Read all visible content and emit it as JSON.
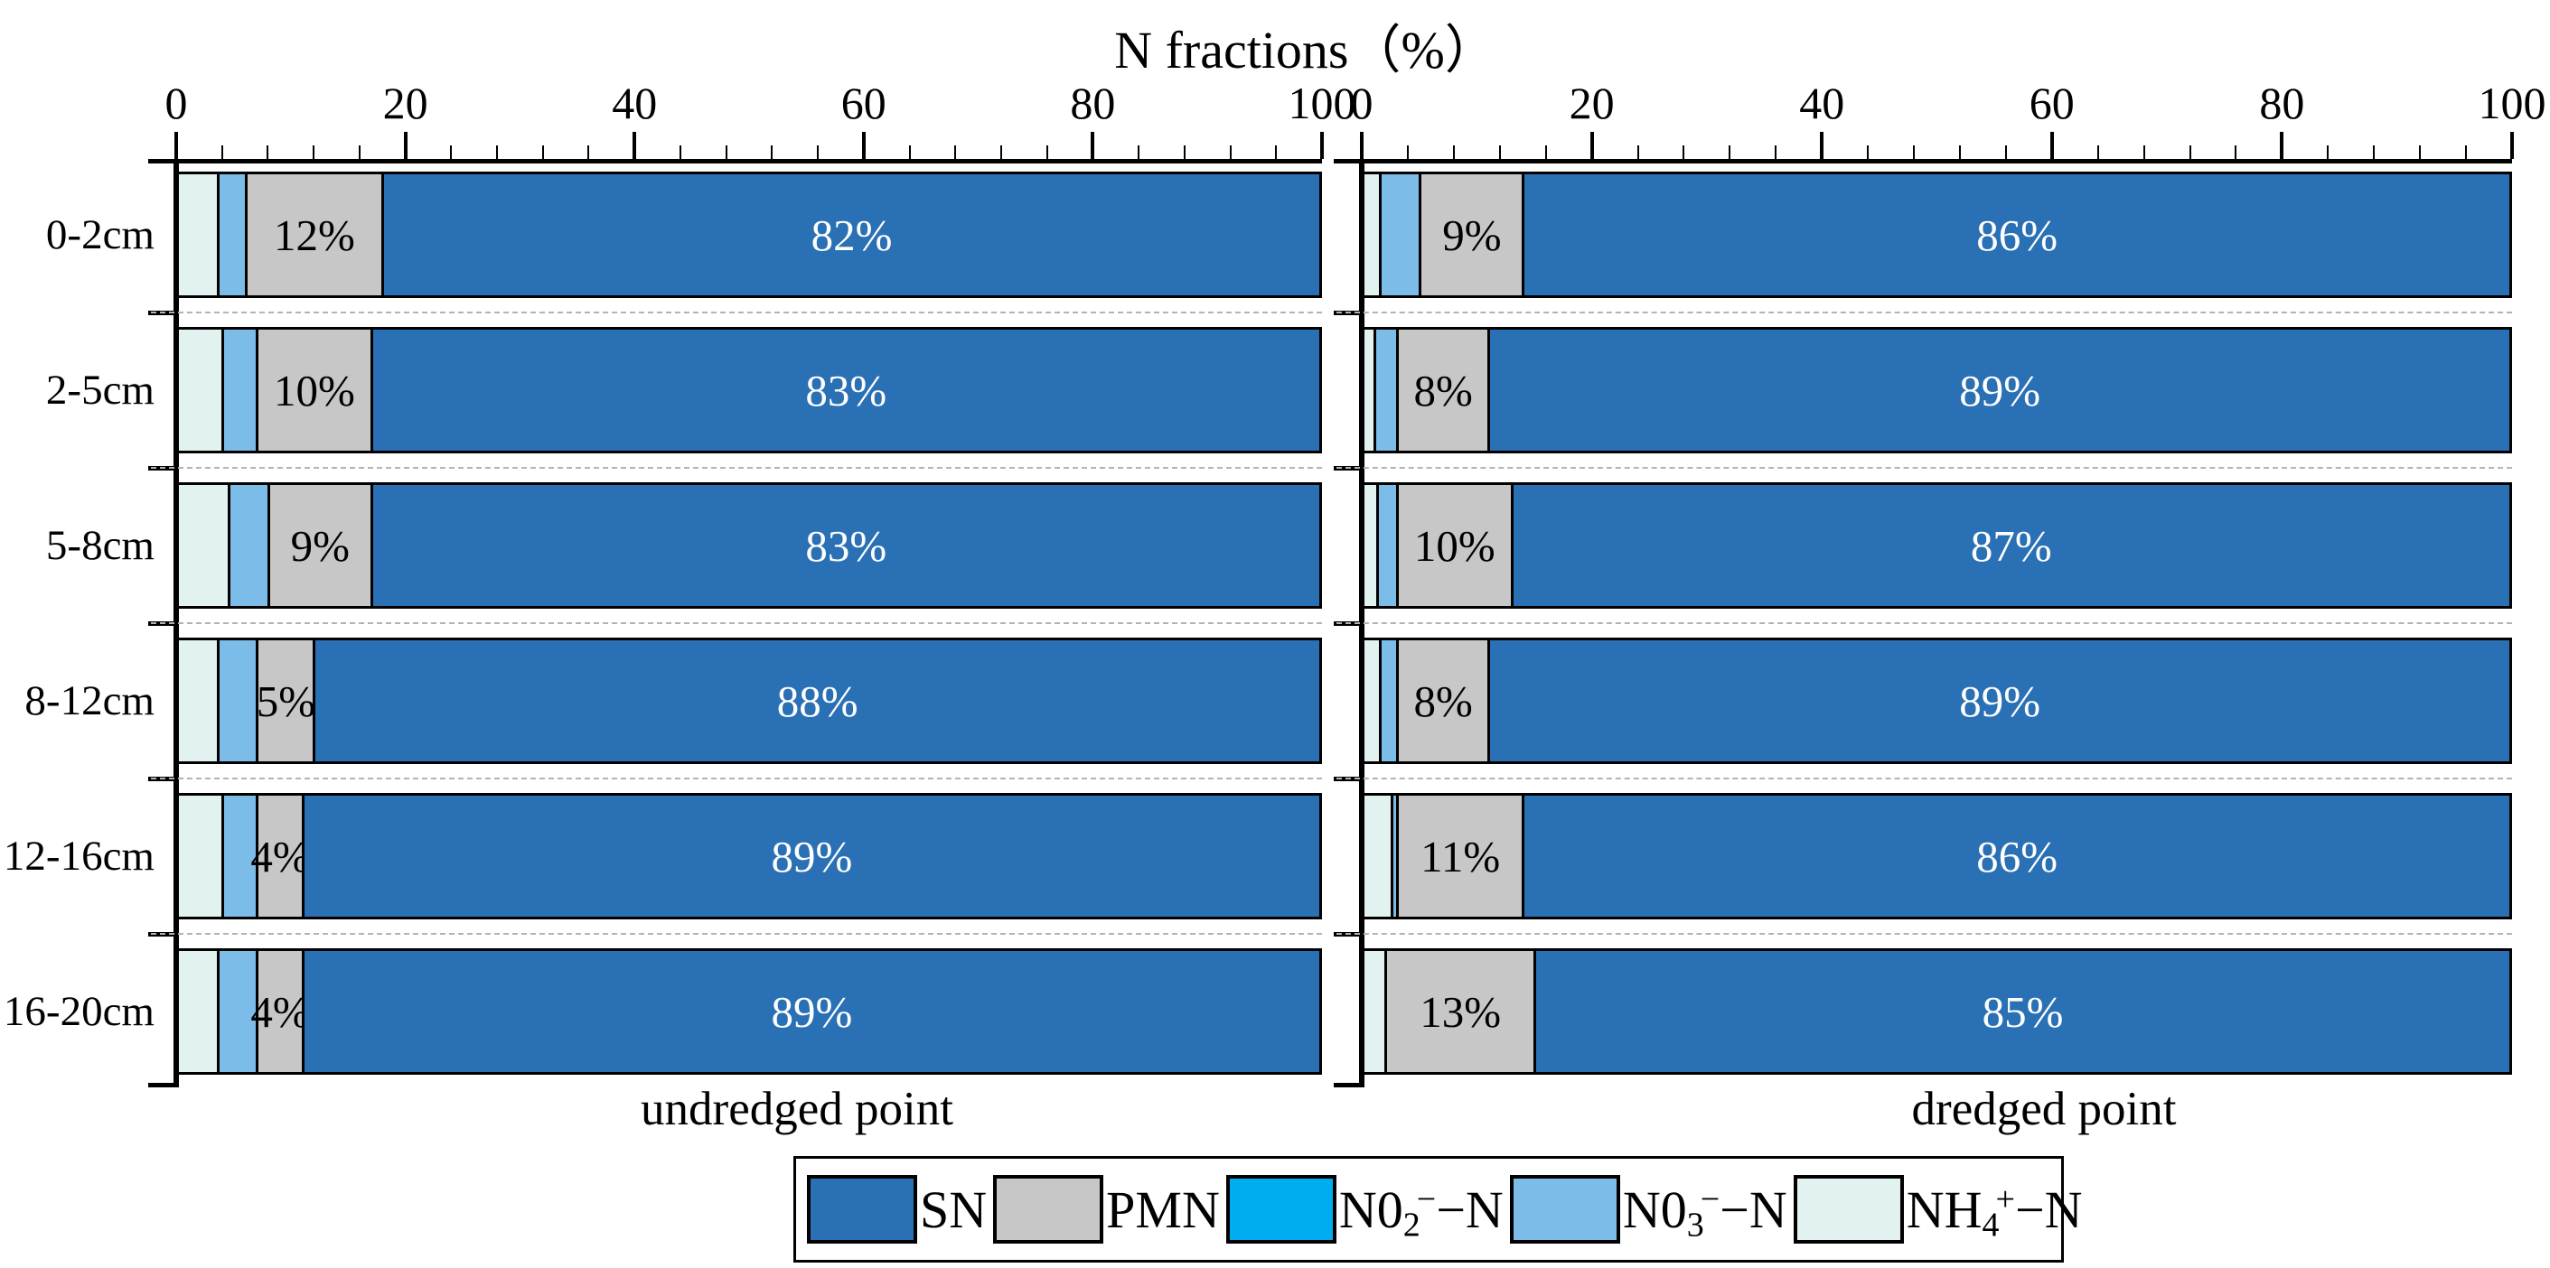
{
  "figure": {
    "title": "N fractions（%）"
  },
  "chart_data": {
    "type": "bar",
    "variant": "horizontal-stacked-percentage",
    "title": "N fractions（%）",
    "axis": {
      "xlim": [
        0,
        100
      ],
      "x_ticks": [
        0,
        20,
        40,
        60,
        80,
        100
      ],
      "minor_tick_step": 4,
      "tick_side": "top",
      "grid": "dashed-row-separators"
    },
    "categories": [
      "0-2cm",
      "2-5cm",
      "5-8cm",
      "8-12cm",
      "12-16cm",
      "16-20cm"
    ],
    "series_order": [
      "NH4-N",
      "NO3-N",
      "NO2-N",
      "PMN",
      "SN"
    ],
    "colors": {
      "SN": "#2a70b4",
      "PMN": "#c7c7c7",
      "NO2-N": "#00aeef",
      "NO3-N": "#7cbce9",
      "NH4-N": "#e2f2f1",
      "separator_dash": "#b3b3b3",
      "bar_border": "#000000"
    },
    "legend": {
      "position": "bottom-center",
      "items": [
        {
          "key": "SN",
          "pre": "SN"
        },
        {
          "key": "PMN",
          "pre": "PMN"
        },
        {
          "key": "NO2-N",
          "pre": "N0",
          "sub": "2",
          "sup": "−",
          "post": "−N"
        },
        {
          "key": "NO3-N",
          "pre": "N0",
          "sub": "3",
          "sup": "−",
          "post": "−N"
        },
        {
          "key": "NH4-N",
          "pre": "NH",
          "sub": "4",
          "sup": "+",
          "post": "−N"
        }
      ]
    },
    "panels": [
      {
        "label": "undredged point",
        "rows": [
          {
            "category": "0-2cm",
            "values": {
              "NH4-N": 3.6,
              "NO3-N": 2.4,
              "NO2-N": 0,
              "PMN": 12,
              "SN": 82
            },
            "labels": {
              "PMN": "12%",
              "SN": "82%"
            }
          },
          {
            "category": "2-5cm",
            "values": {
              "NH4-N": 4.0,
              "NO3-N": 3.0,
              "NO2-N": 0,
              "PMN": 10,
              "SN": 83
            },
            "labels": {
              "PMN": "10%",
              "SN": "83%"
            }
          },
          {
            "category": "5-8cm",
            "values": {
              "NH4-N": 4.5,
              "NO3-N": 3.5,
              "NO2-N": 0,
              "PMN": 9,
              "SN": 83
            },
            "labels": {
              "PMN": "9%",
              "SN": "83%"
            }
          },
          {
            "category": "8-12cm",
            "values": {
              "NH4-N": 3.6,
              "NO3-N": 3.4,
              "NO2-N": 0,
              "PMN": 5,
              "SN": 88
            },
            "labels": {
              "PMN": "5%",
              "SN": "88%"
            }
          },
          {
            "category": "12-16cm",
            "values": {
              "NH4-N": 4.0,
              "NO3-N": 3.0,
              "NO2-N": 0,
              "PMN": 4,
              "SN": 89
            },
            "labels": {
              "PMN": "4%",
              "SN": "89%"
            }
          },
          {
            "category": "16-20cm",
            "values": {
              "NH4-N": 3.6,
              "NO3-N": 3.4,
              "NO2-N": 0,
              "PMN": 4,
              "SN": 89
            },
            "labels": {
              "PMN": "4%",
              "SN": "89%"
            }
          }
        ]
      },
      {
        "label": "dredged point",
        "rows": [
          {
            "category": "0-2cm",
            "values": {
              "NH4-N": 1.5,
              "NO3-N": 3.5,
              "NO2-N": 0,
              "PMN": 9,
              "SN": 86
            },
            "labels": {
              "PMN": "9%",
              "SN": "86%"
            }
          },
          {
            "category": "2-5cm",
            "values": {
              "NH4-N": 1.0,
              "NO3-N": 2.0,
              "NO2-N": 0,
              "PMN": 8,
              "SN": 89
            },
            "labels": {
              "PMN": "8%",
              "SN": "89%"
            }
          },
          {
            "category": "5-8cm",
            "values": {
              "NH4-N": 1.3,
              "NO3-N": 1.7,
              "NO2-N": 0,
              "PMN": 10,
              "SN": 87
            },
            "labels": {
              "PMN": "10%",
              "SN": "87%"
            }
          },
          {
            "category": "8-12cm",
            "values": {
              "NH4-N": 1.5,
              "NO3-N": 1.5,
              "NO2-N": 0,
              "PMN": 8,
              "SN": 89
            },
            "labels": {
              "PMN": "8%",
              "SN": "89%"
            }
          },
          {
            "category": "12-16cm",
            "values": {
              "NH4-N": 2.5,
              "NO3-N": 0.5,
              "NO2-N": 0,
              "PMN": 11,
              "SN": 86
            },
            "labels": {
              "PMN": "11%",
              "SN": "86%"
            }
          },
          {
            "category": "16-20cm",
            "values": {
              "NH4-N": 2.0,
              "NO3-N": 0.0,
              "NO2-N": 0,
              "PMN": 13,
              "SN": 85
            },
            "labels": {
              "PMN": "13%",
              "SN": "85%"
            }
          }
        ]
      }
    ]
  }
}
